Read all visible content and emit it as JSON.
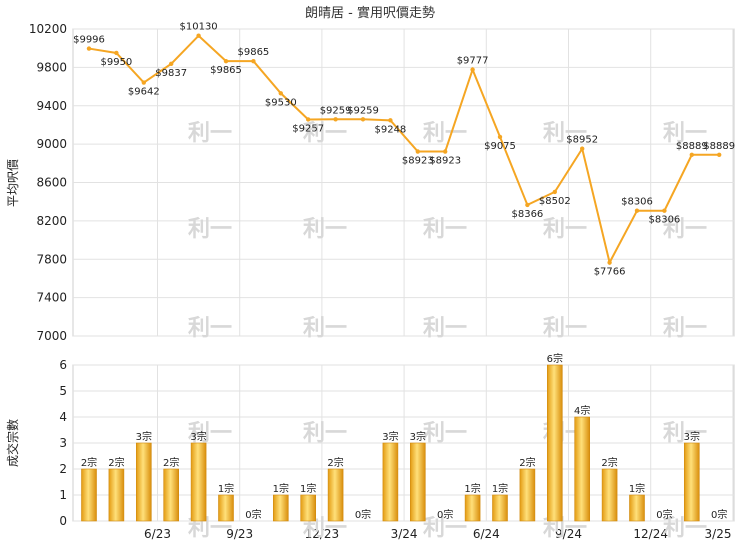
{
  "chart_data": [
    {
      "type": "line",
      "title": "朗晴居 - 實用呎價走勢",
      "ylabel": "平均呎價",
      "ylim": [
        7000,
        10200
      ],
      "yticks": [
        7000,
        7400,
        7800,
        8200,
        8600,
        9000,
        9400,
        9800,
        10200
      ],
      "grid": true,
      "color": "#f5a623",
      "series": [
        {
          "values": [
            9996,
            9950,
            9642,
            9837,
            10130,
            9865,
            9865,
            9530,
            9257,
            9259,
            9259,
            9248,
            8923,
            8923,
            9777,
            9075,
            8366,
            8502,
            8952,
            7766,
            8306,
            8306,
            8889,
            8889
          ],
          "labels": [
            "$9996",
            "$9950",
            "$9642",
            "$9837",
            "$10130",
            "$9865",
            "$9865",
            "$9530",
            "$9257",
            "$9259",
            "$9259",
            "$9248",
            "$8923",
            "$8923",
            "$9777",
            "$9075",
            "$8366",
            "$8502",
            "$8952",
            "$7766",
            "$8306",
            "$8306",
            "$8889",
            "$8889"
          ]
        }
      ]
    },
    {
      "type": "bar",
      "ylabel": "成交宗數",
      "ylim": [
        0,
        6
      ],
      "yticks": [
        0,
        1,
        2,
        3,
        4,
        5,
        6
      ],
      "xticks": [
        "6/23",
        "9/23",
        "12/23",
        "3/24",
        "6/24",
        "9/24",
        "12/24",
        "3/25"
      ],
      "grid": true,
      "color": "#f5a623",
      "values": [
        2,
        2,
        3,
        2,
        3,
        1,
        0,
        1,
        1,
        2,
        0,
        3,
        3,
        0,
        1,
        1,
        2,
        6,
        4,
        2,
        1,
        0,
        3,
        0
      ],
      "labels": [
        "2宗",
        "2宗",
        "3宗",
        "2宗",
        "3宗",
        "1宗",
        "0宗",
        "1宗",
        "1宗",
        "2宗",
        "0宗",
        "3宗",
        "3宗",
        "0宗",
        "1宗",
        "1宗",
        "2宗",
        "6宗",
        "4宗",
        "2宗",
        "1宗",
        "0宗",
        "3宗",
        "0宗"
      ]
    }
  ],
  "watermark": "利一"
}
